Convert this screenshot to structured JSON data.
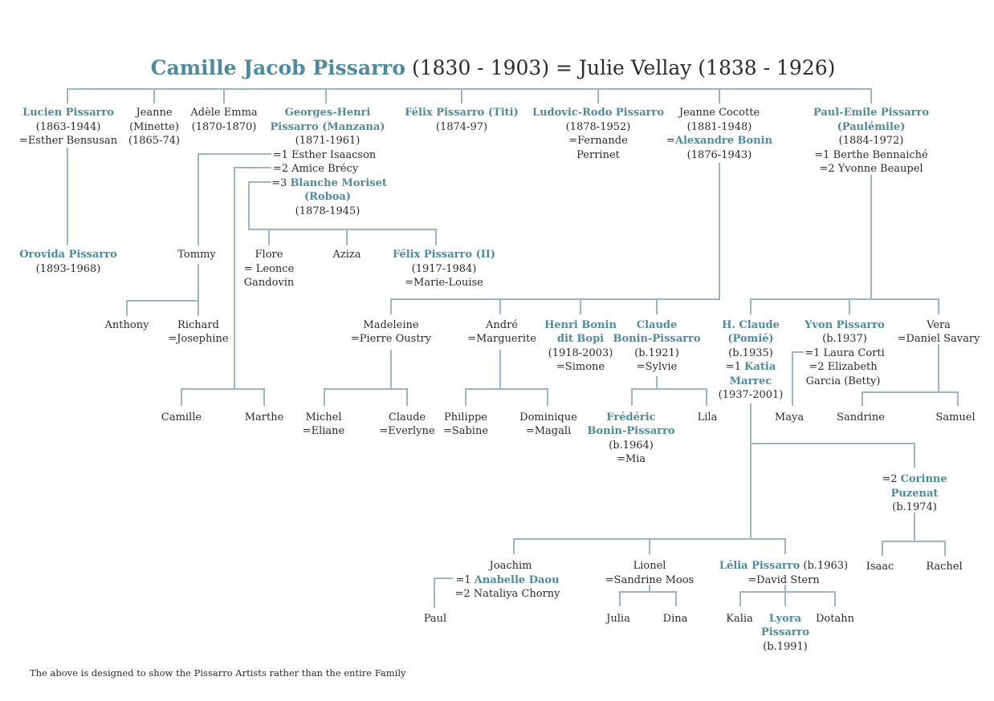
{
  "title": {
    "name": "Camille Jacob Pissarro",
    "dates": "(1830 - 1903) = Julie Vellay (1838 - 1926)"
  },
  "footnote": "The above is designed to show the Pissarro Artists rather than the entire Family",
  "colors": {
    "artist": "#4f8a9e",
    "line": "#9ab7c4",
    "text": "#2b2b2b"
  },
  "p": {
    "lucien": [
      "Lucien Pissarro",
      "(1863-1944)",
      "=Esther Bensusan"
    ],
    "jeanne": [
      "Jeanne",
      "(Minette)",
      "(1865-74)"
    ],
    "adele": [
      "Adèle Emma",
      "(1870-1870)"
    ],
    "georges": [
      "Georges-Henri",
      "Pissarro (Manzana)",
      "(1871-1961)"
    ],
    "georges_m1": "=1 Esther Isaacson",
    "georges_m2": "=2 Amice Brécy",
    "georges_m3_pre": "=3 ",
    "georges_m3": "Blanche Moriset",
    "georges_m3b": [
      "(Roboa)",
      "(1878-1945)"
    ],
    "felix": [
      "Félix Pissarro (Titi)",
      "(1874-97)"
    ],
    "ludovic": [
      "Ludovic-Rodo Pissarro",
      "(1878-1952)",
      "=Fernande",
      "Perrinet"
    ],
    "jeannec": [
      "Jeanne Cocotte",
      "(1881-1948)"
    ],
    "jeannec_m_pre": "=",
    "jeannec_m": "Alexandre Bonin",
    "jeannec_m_dates": "(1876-1943)",
    "paul": [
      "Paul-Emile Pissarro",
      "(Paulémile)",
      "(1884-1972)",
      "=1 Berthe Bennaiché",
      "=2 Yvonne Beaupel"
    ],
    "orovida": [
      "Orovida Pissarro",
      "(1893-1968)"
    ],
    "tommy": [
      "Tommy"
    ],
    "flore": [
      "Flore",
      "= Leonce",
      "Gandovin"
    ],
    "aziza": [
      "Aziza"
    ],
    "felix2": [
      "Félix Pissarro (II)",
      "(1917-1984)",
      "=Marie-Louise"
    ],
    "anthony": [
      "Anthony"
    ],
    "richard": [
      "Richard",
      "=Josephine"
    ],
    "madeleine": [
      "Madeleine",
      "=Pierre Oustry"
    ],
    "andre": [
      "André",
      "=Marguerite"
    ],
    "henri": [
      "Henri Bonin",
      "dit Bopi",
      "(1918-2003)",
      "=Simone"
    ],
    "claude": [
      "Claude",
      "Bonin-Pissarro",
      "(b.1921)",
      "=Sylvie"
    ],
    "hclaude": [
      "H. Claude",
      "(Pomié)",
      "(b.1935)"
    ],
    "hclaude_m_pre": "=1 ",
    "hclaude_m": [
      "Katia",
      "Marrec"
    ],
    "hclaude_m_dates": "(1937-2001)",
    "yvon": [
      "Yvon Pissarro",
      "(b.1937)",
      "=1 Laura Corti",
      "=2 Elizabeth",
      "Garcia (Betty)"
    ],
    "vera": [
      "Vera",
      "=Daniel Savary"
    ],
    "camille2": [
      "Camille"
    ],
    "marthe": [
      "Marthe"
    ],
    "michel": [
      "Michel",
      "=Eliane"
    ],
    "claude2": [
      "Claude",
      "=Everlyne"
    ],
    "philippe": [
      "Philippe",
      "=Sabine"
    ],
    "dominique": [
      "Dominique",
      "=Magali"
    ],
    "frederic": [
      "Frédéric",
      "Bonin-Pissarro",
      "(b.1964)",
      "=Mia"
    ],
    "lila": [
      "Lila"
    ],
    "maya": [
      "Maya"
    ],
    "sandrine": [
      "Sandrine"
    ],
    "samuel": [
      "Samuel"
    ],
    "corinne_pre": "=2 ",
    "corinne": [
      "Corinne",
      "Puzenat",
      "(b.1974)"
    ],
    "joachim": [
      "Joachim",
      "=2 Nataliya Chorny"
    ],
    "joachim_m_pre": "=1 ",
    "joachim_m": "Anabelle Daou",
    "lionel": [
      "Lionel",
      "=Sandrine Moos"
    ],
    "lelia": [
      "Lélia Pissarro",
      " (b.1963)",
      "=David Stern"
    ],
    "isaac": [
      "Isaac"
    ],
    "rachel": [
      "Rachel"
    ],
    "paul2": [
      "Paul"
    ],
    "julia": [
      "Julia"
    ],
    "dina": [
      "Dina"
    ],
    "kalia": [
      "Kalia"
    ],
    "lyora": [
      "Lyora",
      "Pissarro",
      "(b.1991)"
    ],
    "dotahn": [
      "Dotahn"
    ]
  }
}
